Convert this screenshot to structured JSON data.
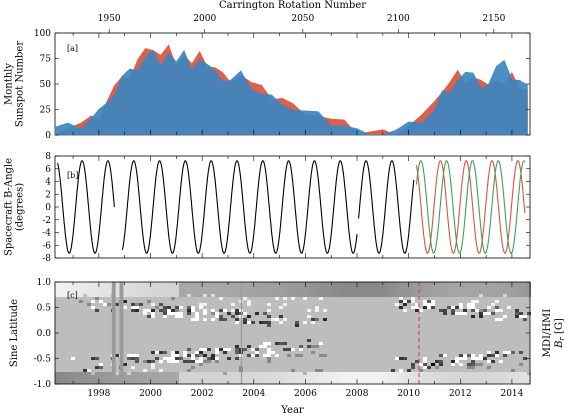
{
  "chart_data": [
    {
      "id": "a",
      "type": "area",
      "panel_label": "[a]",
      "ylabel_lines": [
        "Monthly",
        "Sunspot Number"
      ],
      "top_axis_label": "Carrington Rotation Number",
      "top_ticks": [
        {
          "year": 1998.4,
          "label": "1950"
        },
        {
          "year": 2002.1,
          "label": "2000"
        },
        {
          "year": 2005.9,
          "label": "2050"
        },
        {
          "year": 2009.6,
          "label": "2100"
        },
        {
          "year": 2013.3,
          "label": "2150"
        }
      ],
      "xlim": [
        1996.3,
        2014.7
      ],
      "ylim": [
        0,
        100
      ],
      "yticks": [
        0,
        25,
        50,
        75,
        100
      ],
      "series": [
        {
          "color": "#d9543c",
          "x": [
            1996.3,
            1996.8,
            1997.3,
            1997.7,
            1998.0,
            1998.3,
            1998.6,
            1998.9,
            1999.2,
            1999.5,
            1999.8,
            2000.1,
            2000.4,
            2000.7,
            2001.0,
            2001.3,
            2001.6,
            2001.9,
            2002.2,
            2002.5,
            2002.8,
            2003.1,
            2003.5,
            2003.9,
            2004.3,
            2004.7,
            2005.1,
            2005.5,
            2006.0,
            2006.5,
            2007.0,
            2007.5,
            2008.0,
            2008.5,
            2009.0,
            2009.5,
            2010.0,
            2010.5,
            2011.0,
            2011.3,
            2011.6,
            2011.9,
            2012.2,
            2012.5,
            2012.8,
            2013.1,
            2013.4,
            2013.7,
            2014.0,
            2014.3,
            2014.6
          ],
          "y": [
            5,
            8,
            10,
            14,
            18,
            32,
            45,
            62,
            56,
            72,
            80,
            86,
            78,
            85,
            72,
            80,
            68,
            77,
            70,
            66,
            58,
            56,
            60,
            50,
            44,
            38,
            36,
            28,
            24,
            20,
            14,
            10,
            4,
            3,
            2,
            3,
            10,
            18,
            28,
            45,
            52,
            60,
            55,
            58,
            52,
            44,
            56,
            50,
            58,
            50,
            46
          ]
        },
        {
          "color": "#3b85c0",
          "x": [
            1996.3,
            1996.8,
            1997.3,
            1997.7,
            1998.0,
            1998.3,
            1998.6,
            1998.9,
            1999.2,
            1999.5,
            1999.8,
            2000.1,
            2000.4,
            2000.7,
            2001.0,
            2001.3,
            2001.6,
            2001.9,
            2002.2,
            2002.5,
            2002.8,
            2003.1,
            2003.5,
            2003.9,
            2004.3,
            2004.7,
            2005.1,
            2005.5,
            2006.0,
            2006.5,
            2007.0,
            2007.5,
            2008.0,
            2008.5,
            2009.0,
            2009.5,
            2010.0,
            2010.5,
            2011.0,
            2011.3,
            2011.6,
            2011.9,
            2012.2,
            2012.5,
            2012.8,
            2013.1,
            2013.4,
            2013.7,
            2014.0,
            2014.3,
            2014.6
          ],
          "y": [
            6,
            7,
            9,
            16,
            22,
            36,
            40,
            56,
            60,
            66,
            76,
            80,
            72,
            82,
            70,
            78,
            66,
            74,
            66,
            68,
            54,
            52,
            58,
            48,
            40,
            36,
            34,
            26,
            22,
            18,
            12,
            9,
            3,
            2,
            2,
            3,
            8,
            15,
            24,
            40,
            46,
            55,
            60,
            56,
            48,
            50,
            64,
            78,
            56,
            52,
            44
          ]
        }
      ]
    },
    {
      "id": "b",
      "type": "line",
      "panel_label": "[b]",
      "ylabel_lines": [
        "Spacecraft B-Angle",
        "(degrees)"
      ],
      "xlim": [
        1996.3,
        2014.7
      ],
      "ylim": [
        -8,
        8
      ],
      "yticks": [
        -8,
        -6,
        -4,
        -2,
        0,
        2,
        4,
        6,
        8
      ],
      "amplitude": 7.25,
      "period_years": 1.0,
      "series": [
        {
          "color": "#000000",
          "start": 1996.4,
          "end": 2010.2,
          "phase": 0.0,
          "gaps": [
            [
              1998.6,
              1998.9
            ],
            [
              2008.0,
              2008.05
            ]
          ]
        },
        {
          "color": "#d9543c",
          "start": 2010.3,
          "end": 2014.5,
          "phase": 0.12
        },
        {
          "color": "#3ea05a",
          "start": 2010.3,
          "end": 2014.5,
          "phase": -0.12
        }
      ]
    },
    {
      "id": "c",
      "type": "heatmap",
      "panel_label": "[c]",
      "ylabel": "Sine Latitude",
      "right_label_lines": [
        "MDI/HMI",
        "B",
        "r",
        " [G]"
      ],
      "xlabel": "Year",
      "xlim": [
        1996.3,
        2014.7
      ],
      "ylim": [
        -1.0,
        1.0
      ],
      "yticks": [
        -1.0,
        -0.5,
        0.0,
        0.5,
        1.0
      ],
      "xticks": [
        1998,
        2000,
        2002,
        2004,
        2006,
        2008,
        2010,
        2012,
        2014
      ],
      "transition_year": 2010.4,
      "data_gaps": [
        [
          1998.5,
          1998.65
        ],
        [
          1998.8,
          1998.95
        ],
        [
          2003.5,
          2003.55
        ]
      ]
    }
  ]
}
